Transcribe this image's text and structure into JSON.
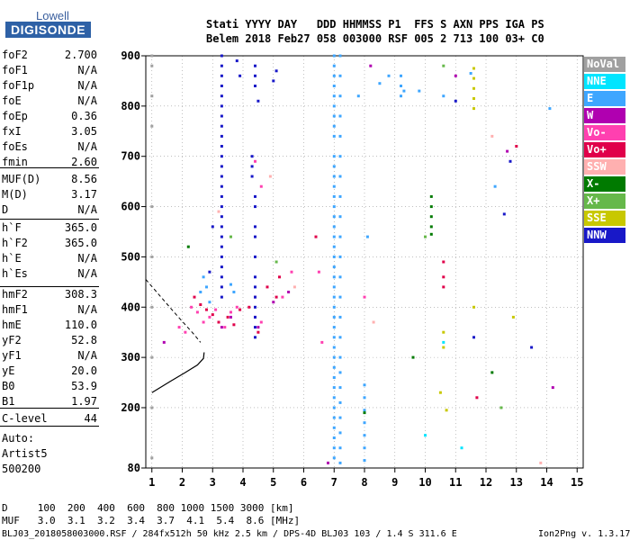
{
  "logo": {
    "line1": "Lowell",
    "line2": "DIGISONDE"
  },
  "header": {
    "line1": "Stati YYYY DAY   DDD HHMMSS P1  FFS S AXN PPS IGA PS",
    "line2": "Belem 2018 Feb27 058 003000 RSF 005 2 713 100 03+ C0"
  },
  "params": [
    {
      "name": "foF2",
      "value": "2.700"
    },
    {
      "name": "foF1",
      "value": "N/A"
    },
    {
      "name": "foF1p",
      "value": "N/A"
    },
    {
      "name": "foE",
      "value": "N/A"
    },
    {
      "name": "foEp",
      "value": "0.36"
    },
    {
      "name": "fxI",
      "value": "3.05"
    },
    {
      "name": "foEs",
      "value": "N/A"
    },
    {
      "name": "fmin",
      "value": "2.60"
    },
    {
      "name": "MUF(D)",
      "value": "8.56"
    },
    {
      "name": "M(D)",
      "value": "3.17"
    },
    {
      "name": "D",
      "value": "N/A"
    },
    {
      "name": "h`F",
      "value": "365.0"
    },
    {
      "name": "h`F2",
      "value": "365.0"
    },
    {
      "name": "h`E",
      "value": "N/A"
    },
    {
      "name": "h`Es",
      "value": "N/A"
    },
    {
      "name": "hmF2",
      "value": "308.3"
    },
    {
      "name": "hmF1",
      "value": "N/A"
    },
    {
      "name": "hmE",
      "value": "110.0"
    },
    {
      "name": "yF2",
      "value": "52.8"
    },
    {
      "name": "yF1",
      "value": "N/A"
    },
    {
      "name": "yE",
      "value": "20.0"
    },
    {
      "name": "B0",
      "value": "53.9"
    },
    {
      "name": "B1",
      "value": "1.97"
    },
    {
      "name": "C-level",
      "value": "44"
    }
  ],
  "auto": {
    "line1": "Auto:",
    "line2": "Artist5",
    "line3": "500200"
  },
  "muf_table": {
    "d_line": "D     100  200  400  600  800 1000 1500 3000 [km]",
    "muf_line": "MUF   3.0  3.1  3.2  3.4  3.7  4.1  5.4  8.6 [MHz]"
  },
  "footer": {
    "left": "BLJ03_2018058003000.RSF / 284fx512h 50 kHz 2.5 km / DPS-4D BLJ03 103 / 1.4 S 311.6 E",
    "right": "Ion2Png v. 1.3.17"
  },
  "legend": [
    {
      "label": "NoVal",
      "color": "#a0a0a0"
    },
    {
      "label": "NNE",
      "color": "#00e5ff"
    },
    {
      "label": "E",
      "color": "#3ea6ff"
    },
    {
      "label": "W",
      "color": "#b000b0"
    },
    {
      "label": "Vo-",
      "color": "#ff40b0"
    },
    {
      "label": "Vo+",
      "color": "#e0004a"
    },
    {
      "label": "SSW",
      "color": "#ffb0b0"
    },
    {
      "label": "X-",
      "color": "#007a00"
    },
    {
      "label": "X+",
      "color": "#66b84a"
    },
    {
      "label": "SSE",
      "color": "#c8c800"
    },
    {
      "label": "NNW",
      "color": "#1818c8"
    }
  ],
  "chart_data": {
    "type": "scatter",
    "xlabel": "",
    "ylabel": "",
    "xlim": [
      0.8,
      15.2
    ],
    "ylim": [
      80,
      900
    ],
    "x_ticks": [
      "1",
      "2",
      "3",
      "4",
      "5",
      "6",
      "7",
      "8",
      "9",
      "10",
      "11",
      "12",
      "13",
      "14",
      "15"
    ],
    "y_ticks": [
      "80",
      "200",
      "300",
      "400",
      "500",
      "600",
      "700",
      "800",
      "900"
    ],
    "grid": "dotted",
    "profile_curve": [
      [
        1.0,
        230
      ],
      [
        1.6,
        252
      ],
      [
        2.1,
        270
      ],
      [
        2.5,
        285
      ],
      [
        2.7,
        298
      ],
      [
        2.72,
        310
      ]
    ],
    "trace_curve_dashed": [
      [
        0.8,
        455
      ],
      [
        1.3,
        420
      ],
      [
        1.8,
        385
      ],
      [
        2.1,
        365
      ],
      [
        2.4,
        345
      ],
      [
        2.6,
        330
      ]
    ],
    "series": [
      {
        "name": "NoVal",
        "points": [
          [
            1.0,
            900
          ],
          [
            1.0,
            880
          ],
          [
            1.0,
            820
          ],
          [
            1.0,
            760
          ],
          [
            1.0,
            600
          ],
          [
            1.0,
            500
          ],
          [
            1.0,
            400
          ],
          [
            1.0,
            300
          ],
          [
            1.0,
            200
          ],
          [
            1.0,
            100
          ]
        ]
      },
      {
        "name": "NNE",
        "points": [
          [
            10.0,
            145
          ],
          [
            10.6,
            330
          ],
          [
            11.2,
            120
          ]
        ]
      },
      {
        "name": "E",
        "points": [
          [
            7.0,
            900
          ],
          [
            7.0,
            880
          ],
          [
            7.0,
            860
          ],
          [
            7.0,
            840
          ],
          [
            7.0,
            820
          ],
          [
            7.0,
            800
          ],
          [
            7.0,
            780
          ],
          [
            7.0,
            760
          ],
          [
            7.0,
            740
          ],
          [
            7.0,
            700
          ],
          [
            7.0,
            680
          ],
          [
            7.0,
            660
          ],
          [
            7.0,
            640
          ],
          [
            7.0,
            620
          ],
          [
            7.0,
            600
          ],
          [
            7.0,
            580
          ],
          [
            7.0,
            560
          ],
          [
            7.0,
            540
          ],
          [
            7.0,
            520
          ],
          [
            7.0,
            500
          ],
          [
            7.0,
            480
          ],
          [
            7.0,
            460
          ],
          [
            7.0,
            440
          ],
          [
            7.0,
            420
          ],
          [
            7.0,
            400
          ],
          [
            7.0,
            380
          ],
          [
            7.0,
            360
          ],
          [
            7.0,
            340
          ],
          [
            7.0,
            320
          ],
          [
            7.0,
            300
          ],
          [
            7.0,
            280
          ],
          [
            7.0,
            260
          ],
          [
            7.0,
            240
          ],
          [
            7.0,
            220
          ],
          [
            7.0,
            200
          ],
          [
            7.0,
            180
          ],
          [
            7.0,
            160
          ],
          [
            7.0,
            140
          ],
          [
            7.0,
            120
          ],
          [
            7.0,
            100
          ],
          [
            7.2,
            900
          ],
          [
            7.2,
            860
          ],
          [
            7.2,
            820
          ],
          [
            7.2,
            780
          ],
          [
            7.2,
            740
          ],
          [
            7.2,
            700
          ],
          [
            7.2,
            660
          ],
          [
            7.2,
            620
          ],
          [
            7.2,
            580
          ],
          [
            7.2,
            540
          ],
          [
            7.2,
            500
          ],
          [
            7.2,
            460
          ],
          [
            7.2,
            420
          ],
          [
            7.2,
            380
          ],
          [
            7.2,
            340
          ],
          [
            7.2,
            300
          ],
          [
            7.2,
            270
          ],
          [
            7.2,
            240
          ],
          [
            7.2,
            210
          ],
          [
            7.2,
            180
          ],
          [
            7.2,
            150
          ],
          [
            7.2,
            120
          ],
          [
            7.2,
            90
          ],
          [
            8.0,
            245
          ],
          [
            8.0,
            220
          ],
          [
            8.0,
            195
          ],
          [
            8.0,
            170
          ],
          [
            8.0,
            145
          ],
          [
            8.0,
            120
          ],
          [
            8.0,
            95
          ],
          [
            8.1,
            540
          ],
          [
            9.2,
            860
          ],
          [
            9.2,
            840
          ],
          [
            9.2,
            820
          ],
          [
            9.3,
            830
          ],
          [
            8.8,
            860
          ],
          [
            8.5,
            845
          ],
          [
            7.8,
            820
          ],
          [
            9.8,
            830
          ],
          [
            10.6,
            820
          ],
          [
            11.5,
            865
          ],
          [
            2.7,
            460
          ],
          [
            2.8,
            440
          ],
          [
            2.6,
            430
          ],
          [
            2.9,
            410
          ],
          [
            3.6,
            445
          ],
          [
            3.7,
            430
          ],
          [
            12.3,
            640
          ],
          [
            14.1,
            795
          ]
        ]
      },
      {
        "name": "W",
        "points": [
          [
            3.3,
            360
          ],
          [
            3.6,
            380
          ],
          [
            4.5,
            360
          ],
          [
            5.0,
            410
          ],
          [
            8.2,
            880
          ],
          [
            11.0,
            860
          ],
          [
            12.7,
            710
          ],
          [
            14.2,
            240
          ],
          [
            6.8,
            90
          ],
          [
            5.5,
            430
          ],
          [
            1.4,
            330
          ]
        ]
      },
      {
        "name": "Vo-",
        "points": [
          [
            2.3,
            400
          ],
          [
            2.5,
            390
          ],
          [
            2.7,
            370
          ],
          [
            2.9,
            380
          ],
          [
            3.1,
            395
          ],
          [
            3.4,
            360
          ],
          [
            3.6,
            390
          ],
          [
            3.8,
            400
          ],
          [
            4.4,
            380
          ],
          [
            4.6,
            370
          ],
          [
            4.4,
            690
          ],
          [
            4.6,
            640
          ],
          [
            5.3,
            420
          ],
          [
            5.6,
            470
          ],
          [
            1.9,
            360
          ],
          [
            2.1,
            350
          ],
          [
            6.5,
            470
          ],
          [
            6.6,
            330
          ],
          [
            8.0,
            420
          ]
        ]
      },
      {
        "name": "Vo+",
        "points": [
          [
            2.4,
            420
          ],
          [
            2.6,
            405
          ],
          [
            2.8,
            395
          ],
          [
            3.0,
            385
          ],
          [
            3.2,
            370
          ],
          [
            3.5,
            380
          ],
          [
            3.7,
            365
          ],
          [
            3.9,
            395
          ],
          [
            4.2,
            400
          ],
          [
            4.4,
            420
          ],
          [
            4.5,
            350
          ],
          [
            4.8,
            440
          ],
          [
            5.1,
            420
          ],
          [
            5.2,
            460
          ],
          [
            6.4,
            540
          ],
          [
            10.6,
            490
          ],
          [
            10.6,
            460
          ],
          [
            10.6,
            440
          ],
          [
            13.0,
            720
          ],
          [
            11.7,
            220
          ]
        ]
      },
      {
        "name": "SSW",
        "points": [
          [
            3.2,
            590
          ],
          [
            4.9,
            660
          ],
          [
            5.7,
            440
          ],
          [
            8.3,
            370
          ],
          [
            12.2,
            740
          ],
          [
            13.8,
            90
          ]
        ]
      },
      {
        "name": "X-",
        "points": [
          [
            10.2,
            620
          ],
          [
            10.2,
            600
          ],
          [
            10.2,
            580
          ],
          [
            10.2,
            560
          ],
          [
            10.2,
            545
          ],
          [
            2.2,
            520
          ],
          [
            12.2,
            270
          ],
          [
            9.6,
            300
          ],
          [
            8.0,
            190
          ]
        ]
      },
      {
        "name": "X+",
        "points": [
          [
            10.0,
            540
          ],
          [
            3.6,
            540
          ],
          [
            5.1,
            490
          ],
          [
            10.6,
            880
          ],
          [
            12.5,
            200
          ]
        ]
      },
      {
        "name": "SSE",
        "points": [
          [
            11.6,
            875
          ],
          [
            11.6,
            855
          ],
          [
            11.6,
            835
          ],
          [
            11.6,
            815
          ],
          [
            11.6,
            795
          ],
          [
            10.6,
            350
          ],
          [
            10.6,
            320
          ],
          [
            10.7,
            195
          ],
          [
            10.5,
            230
          ],
          [
            11.6,
            400
          ],
          [
            12.9,
            380
          ]
        ]
      },
      {
        "name": "NNW",
        "points": [
          [
            3.3,
            900
          ],
          [
            3.3,
            880
          ],
          [
            3.3,
            860
          ],
          [
            3.3,
            840
          ],
          [
            3.3,
            820
          ],
          [
            3.3,
            800
          ],
          [
            3.3,
            780
          ],
          [
            3.3,
            760
          ],
          [
            3.3,
            740
          ],
          [
            3.3,
            720
          ],
          [
            3.3,
            700
          ],
          [
            3.3,
            680
          ],
          [
            3.3,
            660
          ],
          [
            3.3,
            640
          ],
          [
            3.3,
            620
          ],
          [
            3.3,
            600
          ],
          [
            3.3,
            580
          ],
          [
            3.3,
            560
          ],
          [
            3.3,
            540
          ],
          [
            3.3,
            520
          ],
          [
            3.3,
            500
          ],
          [
            3.3,
            480
          ],
          [
            3.3,
            460
          ],
          [
            3.3,
            440
          ],
          [
            3.3,
            420
          ],
          [
            4.4,
            880
          ],
          [
            4.4,
            860
          ],
          [
            4.4,
            840
          ],
          [
            4.5,
            810
          ],
          [
            3.8,
            890
          ],
          [
            3.9,
            860
          ],
          [
            4.3,
            700
          ],
          [
            4.3,
            680
          ],
          [
            4.3,
            660
          ],
          [
            4.4,
            620
          ],
          [
            4.4,
            600
          ],
          [
            4.4,
            560
          ],
          [
            4.4,
            540
          ],
          [
            4.4,
            500
          ],
          [
            4.4,
            460
          ],
          [
            4.4,
            440
          ],
          [
            4.4,
            420
          ],
          [
            4.4,
            400
          ],
          [
            4.4,
            380
          ],
          [
            4.4,
            360
          ],
          [
            4.4,
            340
          ],
          [
            12.6,
            585
          ],
          [
            12.8,
            690
          ],
          [
            13.5,
            320
          ],
          [
            11.6,
            340
          ],
          [
            2.9,
            470
          ],
          [
            3.0,
            560
          ],
          [
            5.1,
            870
          ],
          [
            5.0,
            850
          ],
          [
            11.0,
            810
          ]
        ]
      }
    ]
  }
}
